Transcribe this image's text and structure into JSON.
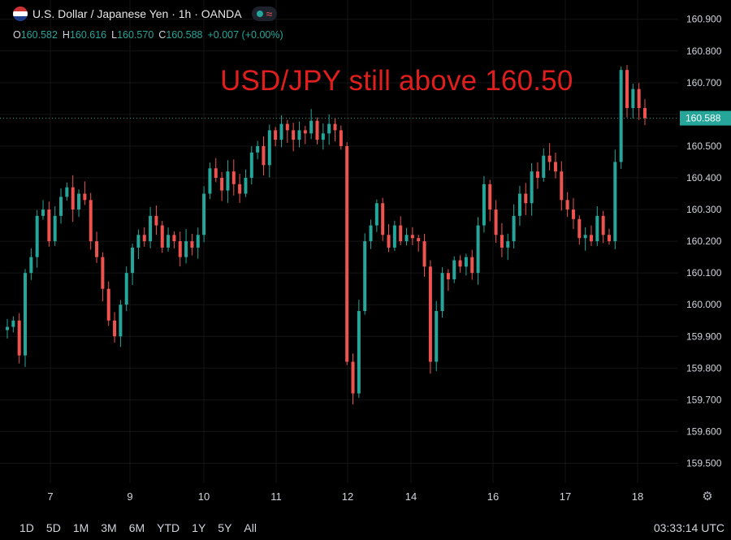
{
  "header": {
    "title": "U.S. Dollar / Japanese Yen · 1h · OANDA",
    "icons": [
      "us-flag-icon",
      "status-dot-icon",
      "wave-icon"
    ]
  },
  "ohlc": {
    "o_label": "O",
    "o": "160.582",
    "h_label": "H",
    "h": "160.616",
    "l_label": "L",
    "l": "160.570",
    "c_label": "C",
    "c": "160.588",
    "change": "+0.007 (+0.00%)"
  },
  "annotation": "USD/JPY still above 160.50",
  "bottom": {
    "ranges": [
      "1D",
      "5D",
      "1M",
      "3M",
      "6M",
      "YTD",
      "1Y",
      "5Y",
      "All"
    ],
    "clock": "03:33:14 UTC"
  },
  "colors": {
    "up": "#26a69a",
    "down": "#ef5350",
    "last_price_bg": "#26a69a",
    "annotation": "#e01e1e"
  },
  "chart_data": {
    "type": "candlestick",
    "y_ticks": [
      "160.900",
      "160.800",
      "160.700",
      "160.600",
      "160.500",
      "160.400",
      "160.300",
      "160.200",
      "160.100",
      "160.000",
      "159.900",
      "159.800",
      "159.700",
      "159.600",
      "159.500"
    ],
    "ylim": [
      159.45,
      160.93
    ],
    "x_ticks": [
      "7",
      "9",
      "10",
      "11",
      "12",
      "14",
      "16",
      "17",
      "18"
    ],
    "last_price": 160.588,
    "last_price_label": "160.588",
    "close_path": [
      159.93,
      159.95,
      159.84,
      160.1,
      160.15,
      160.28,
      160.3,
      160.2,
      160.28,
      160.34,
      160.37,
      160.3,
      160.35,
      160.33,
      160.2,
      160.15,
      160.05,
      159.95,
      159.9,
      160.0,
      160.1,
      160.18,
      160.22,
      160.2,
      160.28,
      160.25,
      160.18,
      160.22,
      160.2,
      160.15,
      160.2,
      160.18,
      160.22,
      160.35,
      160.43,
      160.4,
      160.36,
      160.42,
      160.38,
      160.35,
      160.4,
      160.48,
      160.5,
      160.44,
      160.55,
      160.52,
      160.57,
      160.55,
      160.52,
      160.55,
      160.54,
      160.58,
      160.52,
      160.54,
      160.57,
      160.55,
      160.5,
      159.82,
      159.72,
      159.98,
      160.2,
      160.25,
      160.32,
      160.22,
      160.18,
      160.25,
      160.2,
      160.22,
      160.21,
      160.2,
      160.12,
      159.82,
      159.98,
      160.1,
      160.08,
      160.14,
      160.12,
      160.15,
      160.1,
      160.25,
      160.38,
      160.3,
      160.22,
      160.18,
      160.2,
      160.28,
      160.35,
      160.32,
      160.42,
      160.4,
      160.47,
      160.45,
      160.42,
      160.33,
      160.3,
      160.27,
      160.21,
      160.22,
      160.2,
      160.28,
      160.22,
      160.2,
      160.45,
      160.74,
      160.62,
      160.68,
      160.62,
      160.588
    ]
  }
}
